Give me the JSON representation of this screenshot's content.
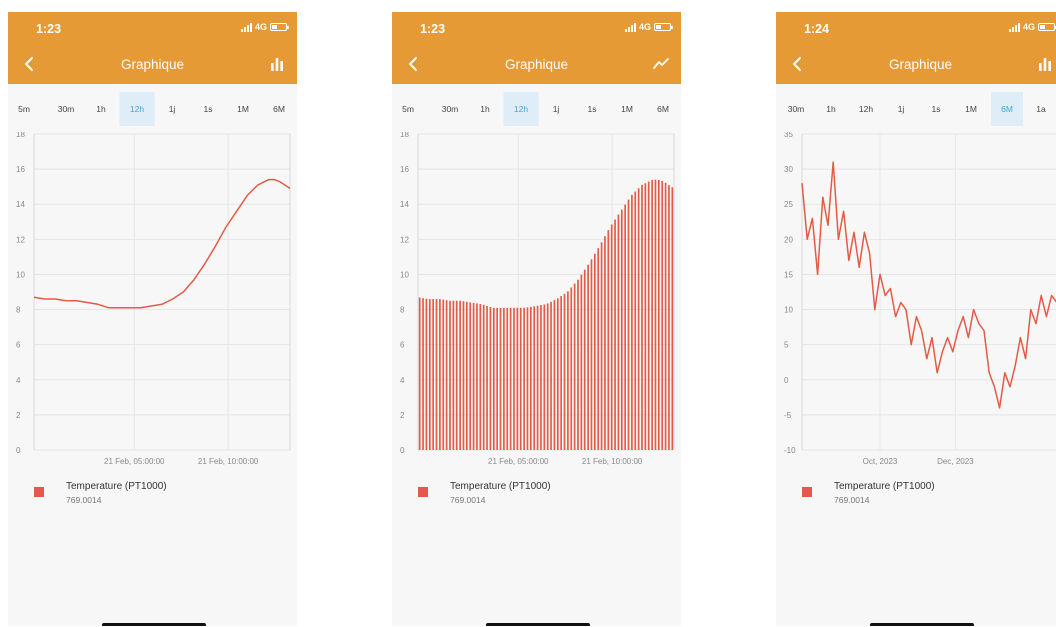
{
  "colors": {
    "header": "#e69a35",
    "series": "#e35b47",
    "tab_active_bg": "#deedf7",
    "tab_active_text": "#4a9fd0"
  },
  "screens": [
    {
      "status": {
        "time": "1:23",
        "network": "4G"
      },
      "header": {
        "title": "Graphique",
        "back_icon": "chevron-left-icon",
        "toggle_icon": "bar-chart-icon"
      },
      "tabs": [
        "5m",
        "30m",
        "1h",
        "12h",
        "1j",
        "1s",
        "1M",
        "6M"
      ],
      "active_tab": "12h",
      "legend": {
        "name": "Temperature (PT1000)",
        "value": "769.0014"
      },
      "chart_data": {
        "type": "line",
        "yticks": [
          0,
          2,
          4,
          6,
          8,
          10,
          12,
          14,
          16,
          18
        ],
        "ylim": [
          0,
          18
        ],
        "xticks": [
          "21 Feb, 05:00:00",
          "21 Feb, 10:00:00"
        ],
        "xlim": [
          0,
          12
        ],
        "xtick_positions": [
          4.7,
          9.1
        ],
        "series": [
          {
            "x": [
              0,
              0.5,
              1,
              1.5,
              2,
              2.5,
              3,
              3.5,
              4,
              4.5,
              5,
              5.5,
              6,
              6.5,
              7,
              7.5,
              8,
              8.5,
              9,
              9.5,
              10,
              10.5,
              11,
              11.25,
              11.5,
              11.75,
              12
            ],
            "values": [
              8.7,
              8.6,
              8.6,
              8.5,
              8.5,
              8.4,
              8.3,
              8.1,
              8.1,
              8.1,
              8.1,
              8.2,
              8.3,
              8.6,
              9.0,
              9.7,
              10.6,
              11.6,
              12.7,
              13.6,
              14.5,
              15.1,
              15.4,
              15.4,
              15.3,
              15.1,
              14.9
            ]
          }
        ]
      }
    },
    {
      "status": {
        "time": "1:23",
        "network": "4G"
      },
      "header": {
        "title": "Graphique",
        "back_icon": "chevron-left-icon",
        "toggle_icon": "line-chart-icon"
      },
      "tabs": [
        "5m",
        "30m",
        "1h",
        "12h",
        "1j",
        "1s",
        "1M",
        "6M"
      ],
      "active_tab": "12h",
      "legend": {
        "name": "Temperature (PT1000)",
        "value": "769.0014"
      },
      "chart_data": {
        "type": "bar",
        "yticks": [
          0,
          2,
          4,
          6,
          8,
          10,
          12,
          14,
          16,
          18
        ],
        "ylim": [
          0,
          18
        ],
        "xticks": [
          "21 Feb, 05:00:00",
          "21 Feb, 10:00:00"
        ],
        "xlim": [
          0,
          12
        ],
        "xtick_positions": [
          4.7,
          9.1
        ],
        "series": [
          {
            "x": [
              0,
              0.5,
              1,
              1.5,
              2,
              2.5,
              3,
              3.5,
              4,
              4.5,
              5,
              5.5,
              6,
              6.5,
              7,
              7.5,
              8,
              8.5,
              9,
              9.5,
              10,
              10.5,
              11,
              11.25,
              11.5,
              11.75,
              12
            ],
            "values": [
              8.7,
              8.6,
              8.6,
              8.5,
              8.5,
              8.4,
              8.3,
              8.1,
              8.1,
              8.1,
              8.1,
              8.2,
              8.3,
              8.6,
              9.0,
              9.7,
              10.6,
              11.6,
              12.7,
              13.6,
              14.5,
              15.1,
              15.4,
              15.4,
              15.3,
              15.1,
              14.9
            ]
          }
        ]
      }
    },
    {
      "status": {
        "time": "1:24",
        "network": "4G"
      },
      "header": {
        "title": "Graphique",
        "back_icon": "chevron-left-icon",
        "toggle_icon": "bar-chart-icon"
      },
      "tabs": [
        "30m",
        "1h",
        "12h",
        "1j",
        "1s",
        "1M",
        "6M",
        "1a"
      ],
      "active_tab": "6M",
      "legend": {
        "name": "Temperature (PT1000)",
        "value": "769.0014"
      },
      "chart_data": {
        "type": "line",
        "yticks": [
          -10,
          -5,
          0,
          5,
          10,
          15,
          20,
          25,
          30,
          35
        ],
        "ylim": [
          -10,
          35
        ],
        "xticks": [
          "Oct, 2023",
          "Dec, 2023"
        ],
        "xlim": [
          0,
          1
        ],
        "xtick_positions": [
          0.3,
          0.59
        ],
        "series": [
          {
            "x": [
              0,
              0.02,
              0.04,
              0.06,
              0.08,
              0.1,
              0.12,
              0.14,
              0.16,
              0.18,
              0.2,
              0.22,
              0.24,
              0.26,
              0.28,
              0.3,
              0.32,
              0.34,
              0.36,
              0.38,
              0.4,
              0.42,
              0.44,
              0.46,
              0.48,
              0.5,
              0.52,
              0.54,
              0.56,
              0.58,
              0.6,
              0.62,
              0.64,
              0.66,
              0.68,
              0.7,
              0.72,
              0.74,
              0.76,
              0.78,
              0.8,
              0.82,
              0.84,
              0.86,
              0.88,
              0.9,
              0.92,
              0.94,
              0.96,
              0.98,
              1.0
            ],
            "values": [
              28,
              20,
              23,
              15,
              26,
              22,
              31,
              20,
              24,
              17,
              21,
              16,
              21,
              18,
              10,
              15,
              12,
              13,
              9,
              11,
              10,
              5,
              9,
              7,
              3,
              6,
              1,
              4,
              6,
              4,
              7,
              9,
              6,
              10,
              8,
              7,
              1,
              -1,
              -4,
              1,
              -1,
              2,
              6,
              3,
              10,
              8,
              12,
              9,
              12,
              11,
              9
            ]
          }
        ]
      }
    }
  ]
}
